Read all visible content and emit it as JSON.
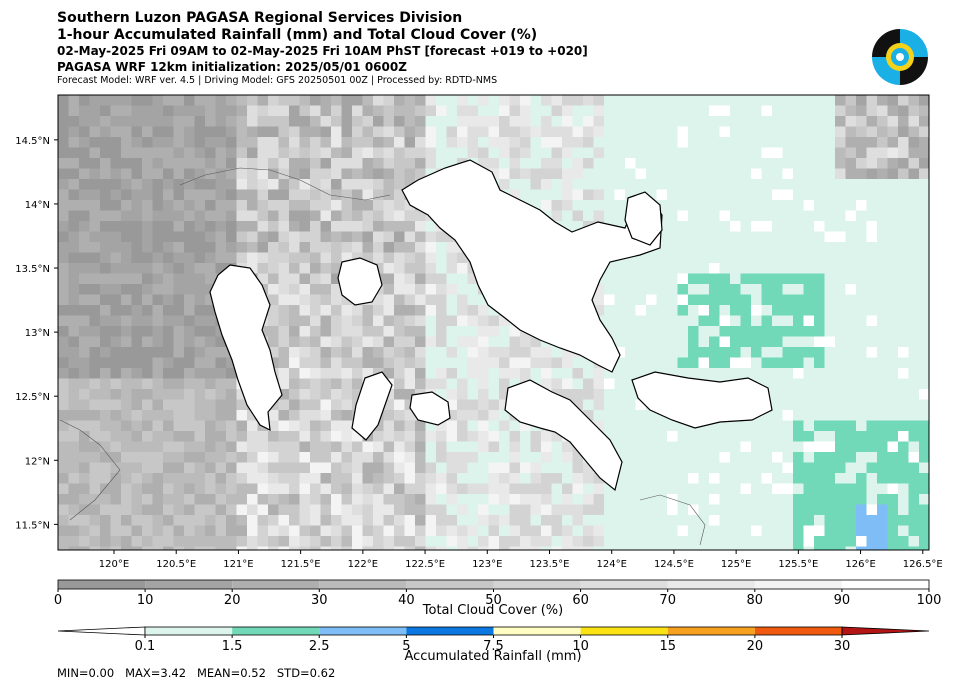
{
  "header": {
    "line1": "Southern Luzon PAGASA Regional Services Division",
    "line2": "1-hour Accumulated Rainfall (mm) and Total Cloud Cover (%)",
    "line3": "02-May-2025 Fri 09AM to 02-May-2025 Fri 10AM PhST [forecast +019 to +020]",
    "line4": "PAGASA WRF 12km initialization: 2025/05/01 0600Z",
    "line5": "Forecast Model: WRF ver. 4.5 | Driving Model: GFS 20250501 00Z | Processed by: RDTD-NMS"
  },
  "logo": {
    "icon": "pagasa-seal-icon",
    "colors": [
      "#111111",
      "#1ab0e6",
      "#f5d21a"
    ]
  },
  "map": {
    "lon_ticks": [
      "120°E",
      "120.5°E",
      "121°E",
      "121.5°E",
      "122°E",
      "122.5°E",
      "123°E",
      "123.5°E",
      "124°E",
      "124.5°E",
      "125°E",
      "125.5°E",
      "126°E",
      "126.5°E"
    ],
    "lat_ticks": [
      "14.5°N",
      "14°N",
      "13.5°N",
      "13°N",
      "12.5°N",
      "12°N",
      "11.5°N"
    ],
    "lon_range": [
      119.55,
      126.55
    ],
    "lat_range": [
      11.3,
      14.85
    ]
  },
  "cloud_colorbar": {
    "label": "Total Cloud Cover (%)",
    "ticks": [
      "0",
      "10",
      "20",
      "30",
      "40",
      "50",
      "60",
      "70",
      "80",
      "90",
      "100"
    ],
    "colors": [
      "#999999",
      "#a4a4a4",
      "#afafaf",
      "#bbbbbb",
      "#c7c7c7",
      "#d3d3d3",
      "#dedede",
      "#e9e9e9",
      "#f4f4f4",
      "#ffffff"
    ]
  },
  "rain_colorbar": {
    "label": "Accumulated Rainfall (mm)",
    "ticks": [
      "0.1",
      "1.5",
      "2.5",
      "5",
      "7.5",
      "10",
      "15",
      "20",
      "30"
    ],
    "colors": [
      "#dcf4ec",
      "#71d8b8",
      "#7ebdf5",
      "#0a78e0",
      "#fffdc2",
      "#fbe313",
      "#f6a21e",
      "#ef5a0f",
      "#b31414"
    ]
  },
  "stats": {
    "text": "MIN=0.00   MAX=3.42   MEAN=0.52   STD=0.62"
  }
}
